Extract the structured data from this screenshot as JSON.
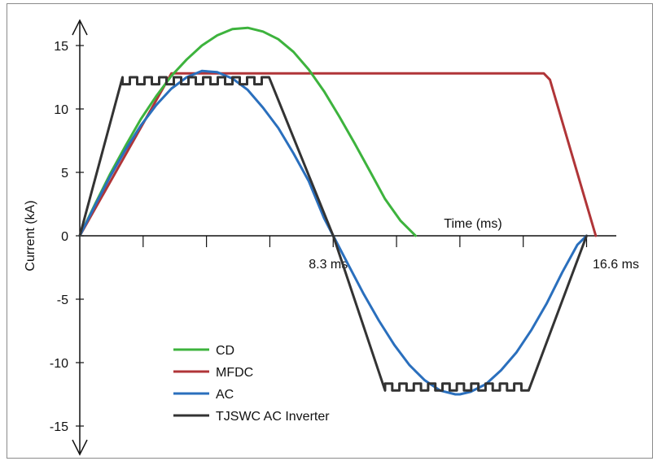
{
  "chart_data": {
    "type": "line",
    "title": "",
    "xlabel": "Time (ms)",
    "ylabel": "Current (kA)",
    "xlim": [
      0,
      17.5
    ],
    "ylim": [
      -17,
      17
    ],
    "y_ticks": [
      15,
      10,
      5,
      0,
      -5,
      -10,
      -15
    ],
    "y_tick_labels": [
      "15",
      "10",
      "5",
      "0",
      "-5",
      "-10",
      "-15"
    ],
    "x_annotations": [
      {
        "x": 8.3,
        "label": "8.3 ms"
      },
      {
        "x": 16.6,
        "label": "16.6 ms"
      }
    ],
    "legend_placement": "lower-left",
    "grid": false,
    "series": [
      {
        "name": "CD",
        "color": "#3db33d",
        "x": [
          0,
          0.5,
          1,
          1.5,
          2,
          2.5,
          3,
          3.5,
          4,
          4.5,
          5,
          5.5,
          6,
          6.5,
          7,
          7.5,
          8,
          8.5,
          9,
          9.5,
          10,
          10.5,
          11
        ],
        "y": [
          0,
          2.5,
          4.9,
          7.1,
          9.2,
          11,
          12.6,
          13.9,
          15,
          15.8,
          16.3,
          16.4,
          16.1,
          15.5,
          14.5,
          13.1,
          11.4,
          9.4,
          7.3,
          5.1,
          2.9,
          1.2,
          0
        ]
      },
      {
        "name": "MFDC",
        "color": "#b03538",
        "x": [
          0,
          3,
          15.2,
          15.4,
          16.9
        ],
        "y": [
          0,
          12.8,
          12.8,
          12.3,
          0
        ]
      },
      {
        "name": "AC",
        "color": "#2a6fbd",
        "x": [
          0,
          0.5,
          1,
          1.5,
          2,
          2.5,
          3,
          3.5,
          4,
          4.5,
          5,
          5.5,
          6,
          6.5,
          7,
          7.5,
          8,
          8.3,
          8.8,
          9.3,
          9.8,
          10.3,
          10.8,
          11.3,
          11.8,
          12.3,
          12.45,
          12.8,
          13.3,
          13.8,
          14.3,
          14.8,
          15.3,
          15.8,
          16.3,
          16.6
        ],
        "y": [
          0,
          2.4,
          4.7,
          6.8,
          8.7,
          10.3,
          11.6,
          12.5,
          13,
          12.9,
          12.4,
          11.5,
          10.1,
          8.5,
          6.5,
          4.3,
          1.4,
          0,
          -2.3,
          -4.6,
          -6.7,
          -8.6,
          -10.2,
          -11.4,
          -12.2,
          -12.5,
          -12.5,
          -12.3,
          -11.7,
          -10.6,
          -9.2,
          -7.4,
          -5.3,
          -2.9,
          -0.7,
          0
        ]
      },
      {
        "name": "TJSWC AC Inverter",
        "color": "#333333",
        "x": [
          0,
          1.4,
          6.2,
          8.3,
          10,
          14.7,
          16.6
        ],
        "y": [
          0,
          12.5,
          12.5,
          0,
          -12.2,
          -12.2,
          0
        ]
      }
    ]
  }
}
